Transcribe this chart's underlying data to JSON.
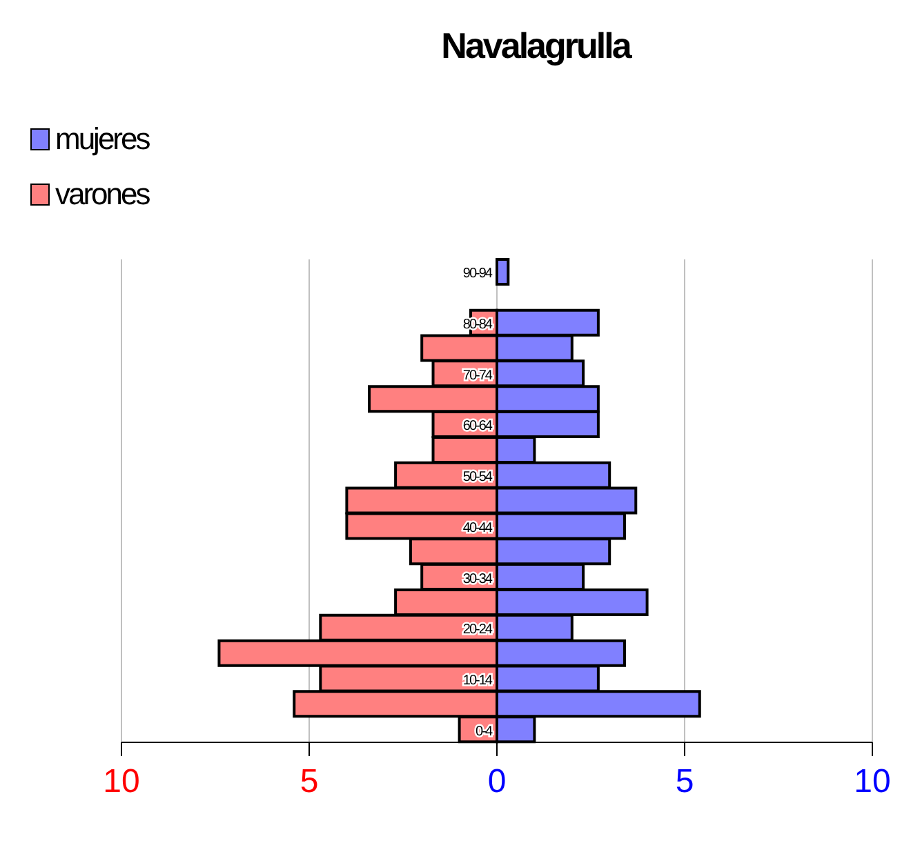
{
  "chart_data": {
    "type": "bar",
    "orientation": "horizontal",
    "stacked": true,
    "title": "Navalagrulla",
    "categories": [
      "90-94",
      null,
      "80-84",
      null,
      "70-74",
      null,
      "60-64",
      null,
      "50-54",
      null,
      "40-44",
      null,
      "30-34",
      null,
      "20-24",
      null,
      "10-14",
      null,
      "0-4"
    ],
    "series": [
      {
        "name": "mujeres",
        "color": "#8080ff",
        "values": [
          0.3,
          0,
          2.7,
          2.0,
          2.3,
          2.7,
          2.7,
          1.0,
          3.0,
          3.7,
          3.4,
          3.0,
          2.3,
          4.0,
          2.0,
          3.4,
          2.7,
          5.4,
          1.0
        ]
      },
      {
        "name": "varones",
        "color": "#ff8080",
        "values": [
          0,
          0,
          -0.7,
          -2.0,
          -1.7,
          -3.4,
          -1.7,
          -1.7,
          -2.7,
          -4.0,
          -4.0,
          -2.3,
          -2.0,
          -2.7,
          -4.7,
          -7.4,
          -4.7,
          -5.4,
          -1.0
        ]
      }
    ],
    "xlim": [
      -10,
      10
    ],
    "xticks": [
      {
        "value": -10,
        "label": "10"
      },
      {
        "value": -5,
        "label": "5"
      },
      0,
      5,
      10
    ],
    "grid": "x",
    "legend": "top left"
  }
}
